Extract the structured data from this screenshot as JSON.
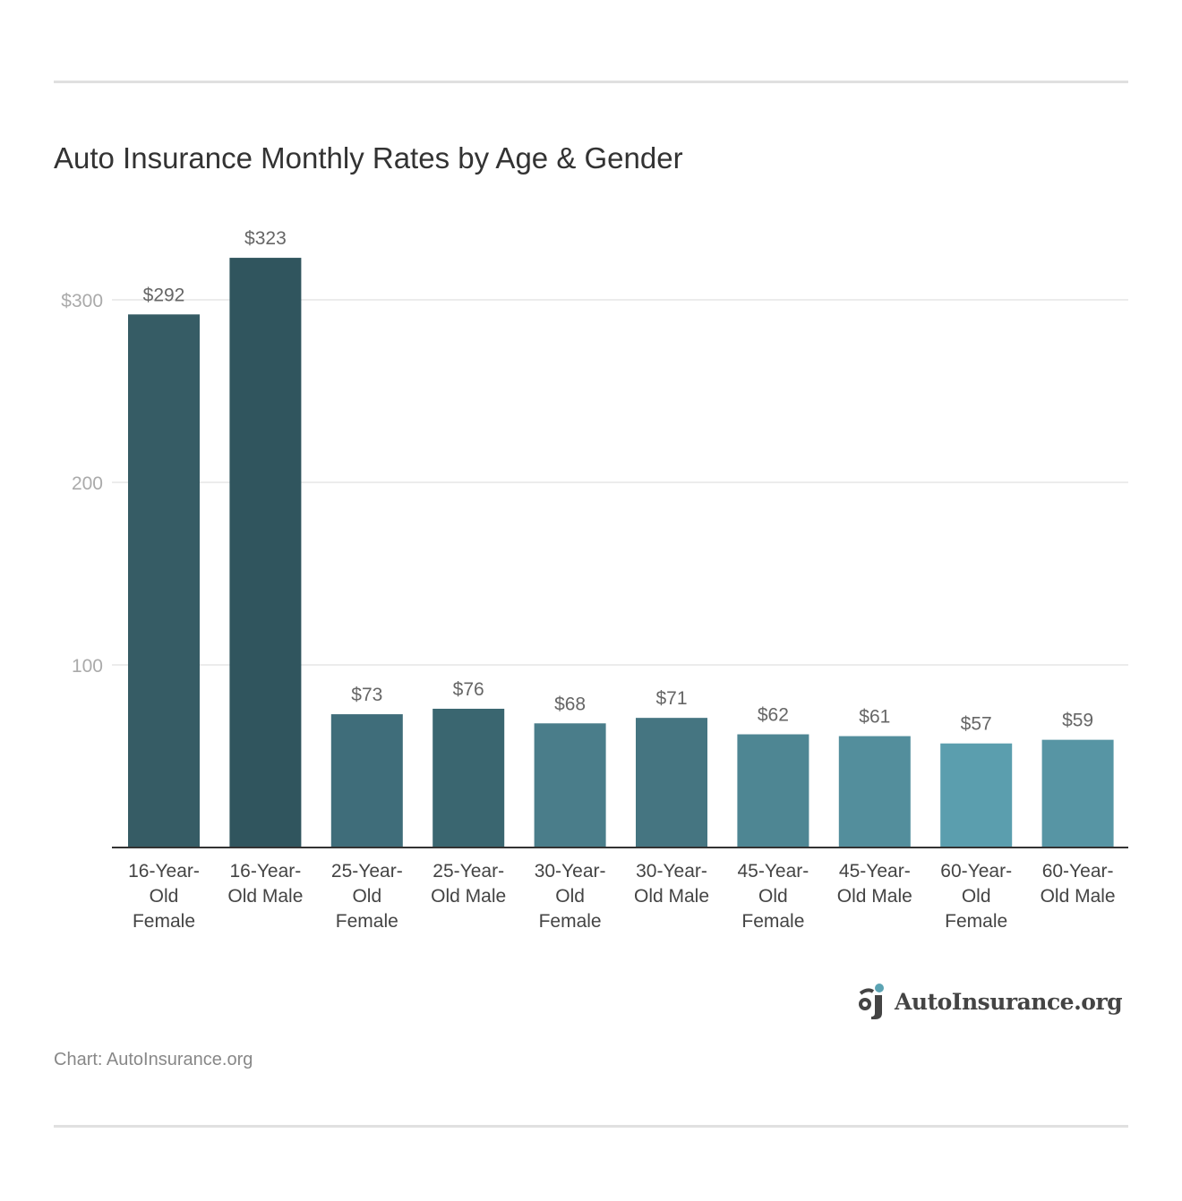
{
  "title": "Auto Insurance Monthly Rates by Age & Gender",
  "source": "Chart: AutoInsurance.org",
  "logo_text": "AutoInsurance.org",
  "chart_data": {
    "type": "bar",
    "title": "Auto Insurance Monthly Rates by Age & Gender",
    "categories": [
      [
        "16-Year-",
        "Old",
        "Female"
      ],
      [
        "16-Year-",
        "Old Male"
      ],
      [
        "25-Year-",
        "Old",
        "Female"
      ],
      [
        "25-Year-",
        "Old Male"
      ],
      [
        "30-Year-",
        "Old",
        "Female"
      ],
      [
        "30-Year-",
        "Old Male"
      ],
      [
        "45-Year-",
        "Old",
        "Female"
      ],
      [
        "45-Year-",
        "Old Male"
      ],
      [
        "60-Year-",
        "Old",
        "Female"
      ],
      [
        "60-Year-",
        "Old Male"
      ]
    ],
    "values": [
      292,
      323,
      73,
      76,
      68,
      71,
      62,
      61,
      57,
      59
    ],
    "data_labels": [
      "$292",
      "$323",
      "$73",
      "$76",
      "$68",
      "$71",
      "$62",
      "$61",
      "$57",
      "$59"
    ],
    "colors": [
      "#365c65",
      "#30555e",
      "#3f6d7a",
      "#3a6670",
      "#4a7d8a",
      "#457581",
      "#4e8693",
      "#538e9c",
      "#5b9eae",
      "#5795a4"
    ],
    "yticks": [
      100,
      200,
      300
    ],
    "ytick_labels": [
      "100",
      "200",
      "$300"
    ],
    "ylim": [
      0,
      340
    ],
    "grid": true,
    "xlabel": "",
    "ylabel": ""
  }
}
